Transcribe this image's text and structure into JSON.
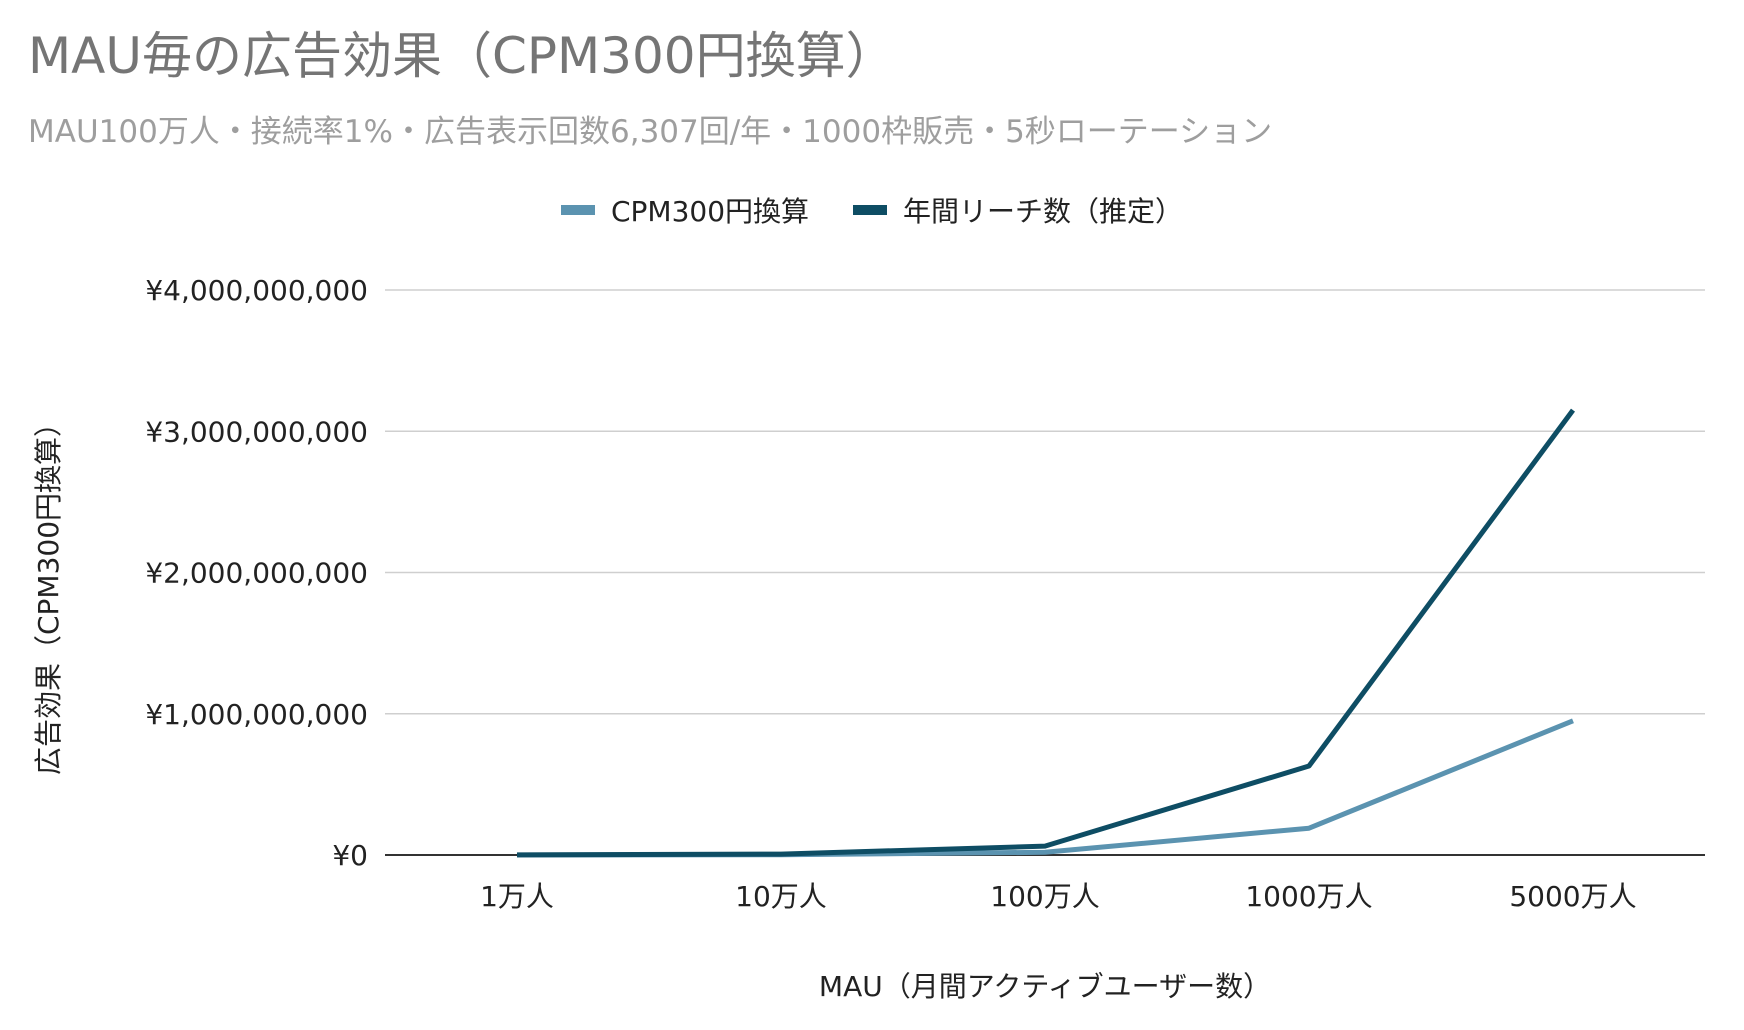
{
  "chart_data": {
    "type": "line",
    "title": "MAU毎の広告効果（CPM300円換算）",
    "subtitle": "MAU100万人・接続率1%・広告表示回数6,307回/年・1000枠販売・5秒ローテーション",
    "xlabel": "MAU（月間アクティブユーザー数）",
    "ylabel": "広告効果（CPM300円換算）",
    "categories": [
      "1万人",
      "10万人",
      "100万人",
      "1000万人",
      "5000万人"
    ],
    "ylim": [
      0,
      4000000000
    ],
    "yticks": [
      {
        "value": 0,
        "label": "¥0"
      },
      {
        "value": 1000000000,
        "label": "¥1,000,000,000"
      },
      {
        "value": 2000000000,
        "label": "¥2,000,000,000"
      },
      {
        "value": 3000000000,
        "label": "¥3,000,000,000"
      },
      {
        "value": 4000000000,
        "label": "¥4,000,000,000"
      }
    ],
    "grid": true,
    "legend_position": "top-center",
    "series": [
      {
        "name": "CPM300円換算",
        "color": "#5b93b0",
        "values": [
          190000,
          1900000,
          19000000,
          190000000,
          950000000
        ]
      },
      {
        "name": "年間リーチ数（推定）",
        "color": "#0e4d64",
        "values": [
          630000,
          6300000,
          63000000,
          630000000,
          3150000000
        ]
      }
    ]
  }
}
